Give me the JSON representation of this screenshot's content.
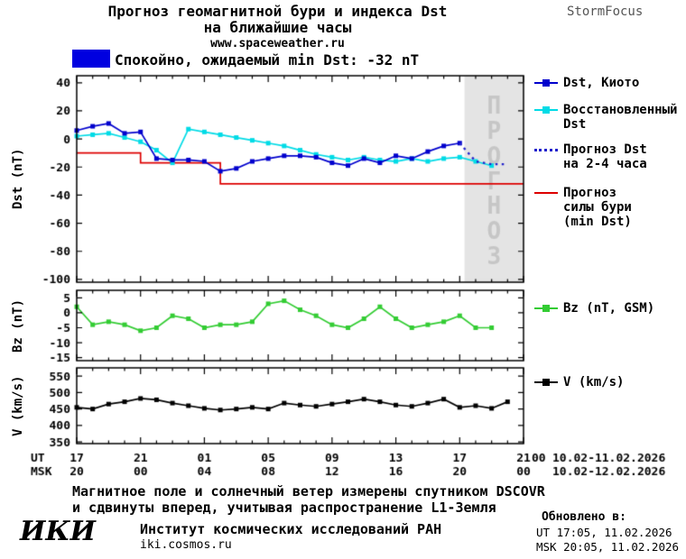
{
  "colors": {
    "kyoto": "#0000cd",
    "restored": "#00dbe6",
    "forecast_dst": "#2222cc",
    "storm": "#dd0000",
    "bz": "#33cc33",
    "v": "#000000",
    "banner": "#0000e0"
  },
  "header": {
    "title_line1": "Прогноз геомагнитной бури и индекса Dst",
    "title_line2": "на ближайшие часы",
    "website": "www.spaceweather.ru",
    "brand": "StormFocus"
  },
  "status_banner": {
    "text": "Спокойно, ожидаемый min Dst: -32 nT"
  },
  "forecast_band": {
    "label": "ПРОГНОЗ",
    "start_hour": 24.3,
    "bg": "#e4e4e4",
    "text_color": "#c6c6c6"
  },
  "legends": {
    "dst_kyoto": "Dst, Киото",
    "restored": "Восстановленный\nDst",
    "forecast": "Прогноз Dst\nна 2-4 часа",
    "storm": "Прогноз\nсилы бури\n(min Dst)",
    "bz": "Bz (nT, GSM)",
    "v": "V (km/s)"
  },
  "x_axis": {
    "ut_label": "UT",
    "msk_label": "MSK",
    "ut": [
      "17",
      "21",
      "01",
      "05",
      "09",
      "13",
      "17",
      "21"
    ],
    "msk": [
      "20",
      "00",
      "04",
      "08",
      "12",
      "16",
      "20",
      "00"
    ],
    "ut_extra": "00",
    "ut_range": "10.02-11.02.2026",
    "msk_range": "10.02-12.02.2026"
  },
  "footer": {
    "note_line1": "Магнитное поле и солнечный ветер измерены спутником DSCOVR",
    "note_line2": "и сдвинуты вперед, учитывая распространение L1-Земля",
    "iki_logo": "ИКИ",
    "institute": "Институт космических исследований РАН",
    "site": "iki.cosmos.ru",
    "updated_label": "Обновлено в:",
    "updated_ut": "UT  17:05, 11.02.2026",
    "updated_msk": "MSK 20:05, 11.02.2026"
  },
  "chart_data": [
    {
      "type": "line",
      "ylabel": "Dst (nT)",
      "ylim": [
        -102,
        45
      ],
      "yticks": [
        40,
        20,
        0,
        -20,
        -40,
        -60,
        -80,
        -100
      ],
      "xlim_hours": [
        0,
        28
      ],
      "xtick_hours": [
        0,
        4,
        8,
        12,
        16,
        20,
        24,
        28
      ],
      "series": [
        {
          "name": "Прогноз силы бури (min Dst)",
          "color": "#dd0000",
          "style": "solid",
          "x": [
            0,
            4,
            4,
            9,
            9,
            28
          ],
          "values": [
            -10,
            -10,
            -17,
            -17,
            -32,
            -32
          ]
        },
        {
          "name": "Восстановленный Dst",
          "color": "#00dbe6",
          "marker": "square",
          "x": [
            0,
            1,
            2,
            3,
            4,
            5,
            6,
            7,
            8,
            9,
            10,
            11,
            12,
            13,
            14,
            15,
            16,
            17,
            18,
            19,
            20,
            21,
            22,
            23,
            24,
            25,
            26
          ],
          "values": [
            2,
            3,
            4,
            1,
            -2,
            -8,
            -17,
            7,
            5,
            3,
            1,
            -1,
            -3,
            -5,
            -8,
            -11,
            -13,
            -15,
            -13,
            -15,
            -16,
            -14,
            -16,
            -14,
            -13,
            -16,
            -19
          ]
        },
        {
          "name": "Dst, Киото",
          "color": "#0000cd",
          "marker": "square",
          "x": [
            0,
            1,
            2,
            3,
            4,
            5,
            6,
            7,
            8,
            9,
            10,
            11,
            12,
            13,
            14,
            15,
            16,
            17,
            18,
            19,
            20,
            21,
            22,
            23,
            24
          ],
          "values": [
            6,
            9,
            11,
            4,
            5,
            -14,
            -15,
            -15,
            -16,
            -23,
            -21,
            -16,
            -14,
            -12,
            -12,
            -13,
            -17,
            -19,
            -14,
            -17,
            -12,
            -14,
            -9,
            -5,
            -3
          ]
        },
        {
          "name": "Прогноз Dst на 2-4 часа",
          "color": "#2222cc",
          "style": "dotted",
          "x": [
            24,
            25,
            26,
            27
          ],
          "values": [
            -3,
            -16,
            -18,
            -18
          ]
        }
      ]
    },
    {
      "type": "line",
      "ylabel": "Bz (nT)",
      "ylim": [
        -16,
        7.5
      ],
      "yticks": [
        5,
        0,
        -5,
        -10,
        -15
      ],
      "xlim_hours": [
        0,
        28
      ],
      "xtick_hours": [
        0,
        4,
        8,
        12,
        16,
        20,
        24,
        28
      ],
      "series": [
        {
          "name": "Bz (nT, GSM)",
          "color": "#33cc33",
          "marker": "square",
          "x": [
            0,
            1,
            2,
            3,
            4,
            5,
            6,
            7,
            8,
            9,
            10,
            11,
            12,
            13,
            14,
            15,
            16,
            17,
            18,
            19,
            20,
            21,
            22,
            23,
            24,
            25,
            26
          ],
          "values": [
            2,
            -4,
            -3,
            -4,
            -6,
            -5,
            -1,
            -2,
            -5,
            -4,
            -4,
            -3,
            3,
            4,
            1,
            -1,
            -4,
            -5,
            -2,
            2,
            -2,
            -5,
            -4,
            -3,
            -1,
            -5,
            -5
          ]
        }
      ]
    },
    {
      "type": "line",
      "ylabel": "V (km/s)",
      "ylim": [
        345,
        575
      ],
      "yticks": [
        550,
        500,
        450,
        400,
        350
      ],
      "xlim_hours": [
        0,
        28
      ],
      "xtick_hours": [
        0,
        4,
        8,
        12,
        16,
        20,
        24,
        28
      ],
      "series": [
        {
          "name": "V (km/s)",
          "color": "#000000",
          "marker": "square",
          "x": [
            0,
            1,
            2,
            3,
            4,
            5,
            6,
            7,
            8,
            9,
            10,
            11,
            12,
            13,
            14,
            15,
            16,
            17,
            18,
            19,
            20,
            21,
            22,
            23,
            24,
            25,
            26,
            27
          ],
          "values": [
            455,
            450,
            465,
            472,
            482,
            478,
            468,
            460,
            452,
            447,
            450,
            455,
            450,
            468,
            462,
            458,
            465,
            472,
            480,
            472,
            462,
            458,
            468,
            480,
            455,
            460,
            452,
            472
          ]
        }
      ]
    }
  ]
}
